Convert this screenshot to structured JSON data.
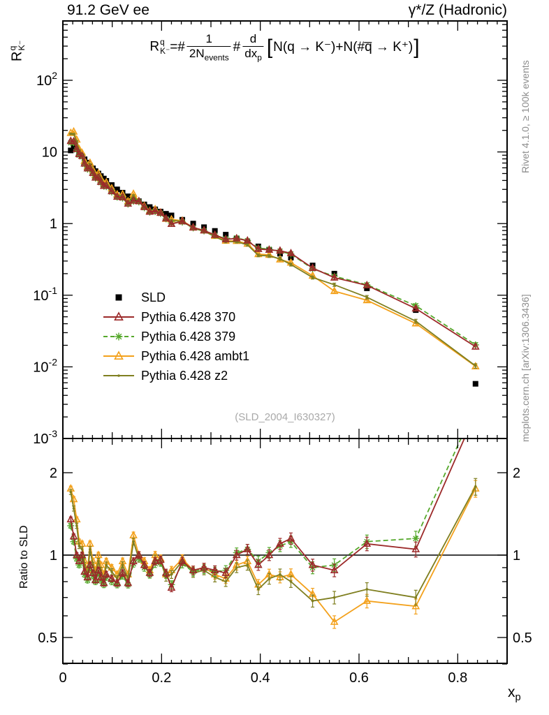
{
  "header": {
    "left": "91.2 GeV ee",
    "right": "γ*/Z (Hadronic)"
  },
  "side_texts": {
    "rivet": "Rivet 4.1.0, ≥ 100k events",
    "mcplots": "mcplots.cern.ch [arXiv:1306.3436]"
  },
  "watermark": "(SLD_2004_I630327)",
  "formula": {
    "r": "R",
    "r_sup": "q",
    "r_sub": "K⁻",
    "eq": "=#",
    "frac1_num": "1",
    "frac1_den": "2N",
    "frac1_den_sub": "events",
    "hash": "#",
    "frac2_num": "d",
    "frac2_den": "dx",
    "frac2_den_sub": "p",
    "lbracket": "[",
    "body": "N(q → K⁻)+N(#q̅ → K⁺)",
    "rbracket": "]"
  },
  "axes_labels": {
    "y_main_base": "R",
    "y_main_sup": "q",
    "y_main_sub": "K⁻",
    "ratio": "Ratio to SLD",
    "x_base": "x",
    "x_sub": "p"
  },
  "chart_data": {
    "type": "line",
    "observable": "R_K^q = 1/(2N_events) d/dx_p [N(q→K⁻)+N(q̄→K⁺)]",
    "analysis": "(SLD_2004_I630327)",
    "xlabel": "x_p",
    "ylabel_main": "R_K^q",
    "ylabel_ratio": "Ratio to SLD",
    "x_range": [
      0,
      0.9
    ],
    "y_range_main": [
      0.001,
      676
    ],
    "y_range_ratio": [
      0.4,
      2.67
    ],
    "grid": false,
    "legend_position": "middle-left",
    "x_ticks": {
      "values": [
        0,
        0.2,
        0.4,
        0.6,
        0.8
      ],
      "labels": [
        "0",
        "0.2",
        "0.4",
        "0.6",
        "0.8"
      ]
    },
    "y_ticks_main": [
      {
        "v": 100,
        "base": "10",
        "exp": "2"
      },
      {
        "v": 10,
        "base": "10"
      },
      {
        "v": 1,
        "base": "1"
      },
      {
        "v": 0.1,
        "base": "10",
        "exp": "-1"
      },
      {
        "v": 0.01,
        "base": "10",
        "exp": "-2"
      },
      {
        "v": 0.001,
        "base": "10",
        "exp": "-3"
      }
    ],
    "y_ticks_ratio": {
      "values": [
        2,
        1,
        0.5
      ],
      "labels": [
        "2",
        "1",
        "0.5"
      ]
    },
    "x": [
      0.016,
      0.022,
      0.028,
      0.033,
      0.039,
      0.044,
      0.05,
      0.055,
      0.061,
      0.066,
      0.072,
      0.077,
      0.083,
      0.088,
      0.099,
      0.11,
      0.121,
      0.132,
      0.143,
      0.154,
      0.165,
      0.176,
      0.187,
      0.198,
      0.209,
      0.22,
      0.242,
      0.264,
      0.286,
      0.308,
      0.33,
      0.352,
      0.374,
      0.396,
      0.418,
      0.44,
      0.462,
      0.506,
      0.55,
      0.616,
      0.715,
      0.836
    ],
    "series": [
      {
        "name": "SLD",
        "role": "data",
        "marker": "square",
        "color": "#000000",
        "line": null,
        "values": [
          10.5,
          12.0,
          11.0,
          9.8,
          8.8,
          7.9,
          7.1,
          6.4,
          5.9,
          5.4,
          5.0,
          4.6,
          4.25,
          3.95,
          3.45,
          3.0,
          2.7,
          2.4,
          2.2,
          2.05,
          1.85,
          1.7,
          1.58,
          1.47,
          1.37,
          1.3,
          1.13,
          1.0,
          0.89,
          0.79,
          0.7,
          0.62,
          0.55,
          0.48,
          0.43,
          0.38,
          0.335,
          0.26,
          0.2,
          0.125,
          0.062,
          0.0058
        ]
      },
      {
        "name": "Pythia 6.428 370",
        "role": "mc",
        "marker": "triangle-open",
        "color": "#9c2a2a",
        "line": "solid",
        "ratio_to_sld": [
          1.35,
          1.17,
          1.0,
          0.95,
          1.0,
          0.87,
          0.83,
          0.92,
          0.86,
          0.81,
          0.88,
          0.83,
          0.79,
          0.85,
          0.82,
          0.79,
          0.86,
          0.79,
          0.95,
          1.0,
          0.92,
          0.86,
          0.95,
          0.96,
          0.86,
          0.76,
          0.95,
          0.88,
          0.9,
          0.88,
          0.86,
          1.0,
          1.05,
          0.92,
          1.0,
          1.1,
          1.15,
          0.92,
          0.88,
          1.1,
          1.05,
          3.3
        ]
      },
      {
        "name": "Pythia 6.428 379",
        "role": "mc",
        "marker": "star",
        "color": "#55a82b",
        "line": "dashed",
        "ratio_to_sld": [
          1.28,
          1.12,
          0.97,
          0.92,
          0.97,
          0.85,
          0.81,
          0.9,
          0.84,
          0.8,
          0.86,
          0.81,
          0.78,
          0.83,
          0.8,
          0.78,
          0.84,
          0.78,
          0.93,
          0.98,
          0.9,
          0.85,
          0.93,
          0.94,
          0.85,
          0.78,
          0.93,
          0.87,
          0.89,
          0.87,
          0.88,
          1.02,
          1.05,
          0.95,
          1.02,
          1.08,
          1.12,
          0.9,
          0.92,
          1.12,
          1.15,
          3.5
        ]
      },
      {
        "name": "Pythia 6.428 ambt1",
        "role": "mc",
        "marker": "triangle-open",
        "color": "#f3a11c",
        "line": "solid",
        "ratio_to_sld": [
          1.75,
          1.6,
          1.35,
          1.12,
          1.1,
          0.95,
          0.88,
          1.1,
          0.95,
          0.88,
          1.0,
          0.92,
          0.85,
          0.95,
          0.9,
          0.85,
          0.95,
          0.85,
          1.18,
          1.0,
          0.95,
          0.88,
          1.0,
          0.97,
          0.85,
          0.88,
          0.97,
          0.88,
          0.9,
          0.85,
          0.82,
          0.92,
          0.95,
          0.78,
          0.85,
          0.83,
          0.85,
          0.72,
          0.57,
          0.68,
          0.65,
          1.75
        ]
      },
      {
        "name": "Pythia 6.428 z2",
        "role": "mc",
        "marker": "dot",
        "color": "#7f7f20",
        "line": "solid",
        "ratio_to_sld": [
          1.7,
          1.48,
          1.28,
          1.08,
          1.05,
          0.92,
          0.85,
          1.05,
          0.92,
          0.85,
          0.95,
          0.88,
          0.82,
          0.92,
          0.87,
          0.82,
          0.92,
          0.82,
          1.12,
          0.97,
          0.92,
          0.85,
          0.97,
          0.95,
          0.83,
          0.85,
          0.95,
          0.86,
          0.88,
          0.83,
          0.8,
          0.9,
          0.92,
          0.75,
          0.82,
          0.85,
          0.8,
          0.68,
          0.7,
          0.75,
          0.7,
          1.78
        ]
      }
    ]
  }
}
